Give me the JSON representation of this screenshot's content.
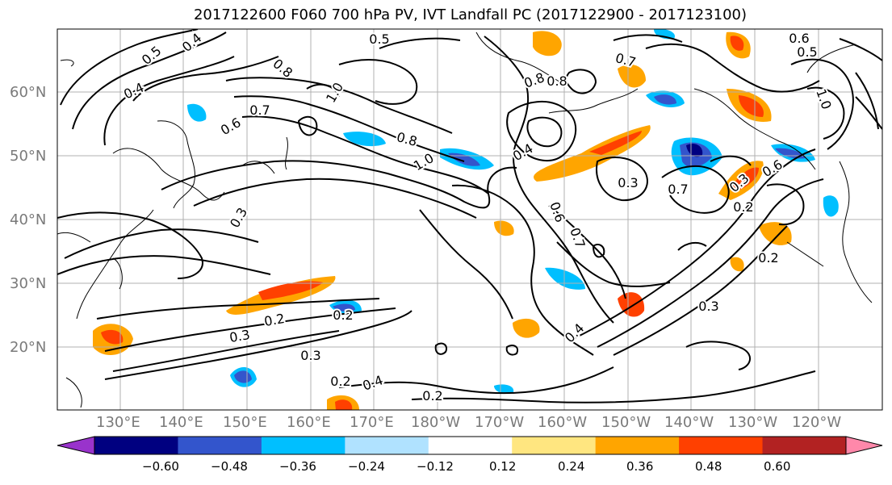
{
  "title": "2017122600 F060 700 hPa PV, IVT Landfall PC (2017122900 - 2017123100)",
  "lat_labels": [
    "60°N",
    "50°N",
    "40°N",
    "30°N",
    "20°N"
  ],
  "lon_labels": [
    "130°E",
    "140°E",
    "150°E",
    "160°E",
    "170°E",
    "180°W",
    "170°W",
    "160°W",
    "150°W",
    "140°W",
    "130°W",
    "120°W"
  ],
  "contour_labels": [
    "0.4",
    "0.5",
    "0.5",
    "0.6",
    "0.8",
    "0.5",
    "0.4",
    "0.7",
    "0.7",
    "0.8",
    "0.6",
    "0.8",
    "1.0",
    "0.4",
    "0.6",
    "0.7",
    "0.3",
    "0.7",
    "0.3",
    "0.2",
    "0.2",
    "0.3",
    "0.2",
    "0.3",
    "0.4",
    "0.2",
    "0.2",
    "0.3",
    "0.2",
    "0.4",
    "1.0",
    "0.8",
    "1.0",
    "0.6",
    "0.3"
  ],
  "colorbar": {
    "ticks": [
      "−0.60",
      "−0.48",
      "−0.36",
      "−0.24",
      "−0.12",
      "0.12",
      "0.24",
      "0.36",
      "0.48",
      "0.60"
    ],
    "colors": [
      "#9933cc",
      "#000080",
      "#3355cc",
      "#00bfff",
      "#b0e2ff",
      "#ffffff",
      "#ffe680",
      "#ffa500",
      "#ff4000",
      "#b22222",
      "#ff88aa"
    ]
  }
}
